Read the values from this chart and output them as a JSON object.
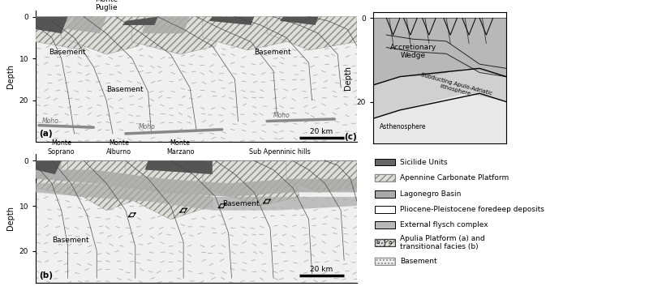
{
  "figure_width": 8.0,
  "figure_height": 3.69,
  "dpi": 100,
  "bg_color": "#ffffff",
  "colors": {
    "sicilide": "#555555",
    "carbonate_fill": "#deded8",
    "carbonate_hatch_color": "#888888",
    "lagonegro": "#aaaaaa",
    "foredeep": "#f8f8f8",
    "flysch": "#b0b0b0",
    "apulia_fill": "#d8d8d8",
    "basement_fill": "#f0f0f0",
    "basement_dash": "#999999",
    "asthenosphere": "#e8e8e8",
    "accretionary": "#b8b8b8",
    "subducting": "#d0d0d0",
    "moho_color": "#888888",
    "thrust_color": "#444444",
    "box_edge": "#000000"
  },
  "panel_a_label": "(a)",
  "panel_b_label": "(b)",
  "panel_c_label": "(c)",
  "monte_puglie": "Monte\nPuglie",
  "monte_soprano": "Monte\nSoprano",
  "monte_alburno": "Monte\nAlburno",
  "monte_marzano": "Monte\nMarzano",
  "sub_apenninic": "Sub Apenninic hills",
  "scale_bar_text": "20 km",
  "ylabel_text": "Depth",
  "basement_text": "Basement",
  "moho_text": "Moho",
  "accretionary_text": "Accretionary\nWedge",
  "asthenosphere_text": "Asthenosphere",
  "subducting_text": "Subducting Apulo-Adriatic\nlithosphere",
  "legend_items": [
    {
      "label": "Sicilide Units",
      "fc": "#666666",
      "ec": "#000000",
      "hatch": null
    },
    {
      "label": "Apennine Carbonate Platform",
      "fc": "#deded8",
      "ec": "#888888",
      "hatch": "////"
    },
    {
      "label": "Lagonegro Basin",
      "fc": "#aaaaaa",
      "ec": "#000000",
      "hatch": null
    },
    {
      "label": "Pliocene-Pleistocene foredeep deposits",
      "fc": "#ffffff",
      "ec": "#000000",
      "hatch": null
    },
    {
      "label": "External flysch complex",
      "fc": "#b8b8b8",
      "ec": "#000000",
      "hatch": null
    },
    {
      "label": "Apulia Platform (a) and\ntransitional facies (b)",
      "fc": "#d0d0d0",
      "ec": "#000000",
      "hatch": "special"
    },
    {
      "label": "Basement",
      "fc": "#f0f0f0",
      "ec": "#888888",
      "hatch": "...."
    }
  ]
}
